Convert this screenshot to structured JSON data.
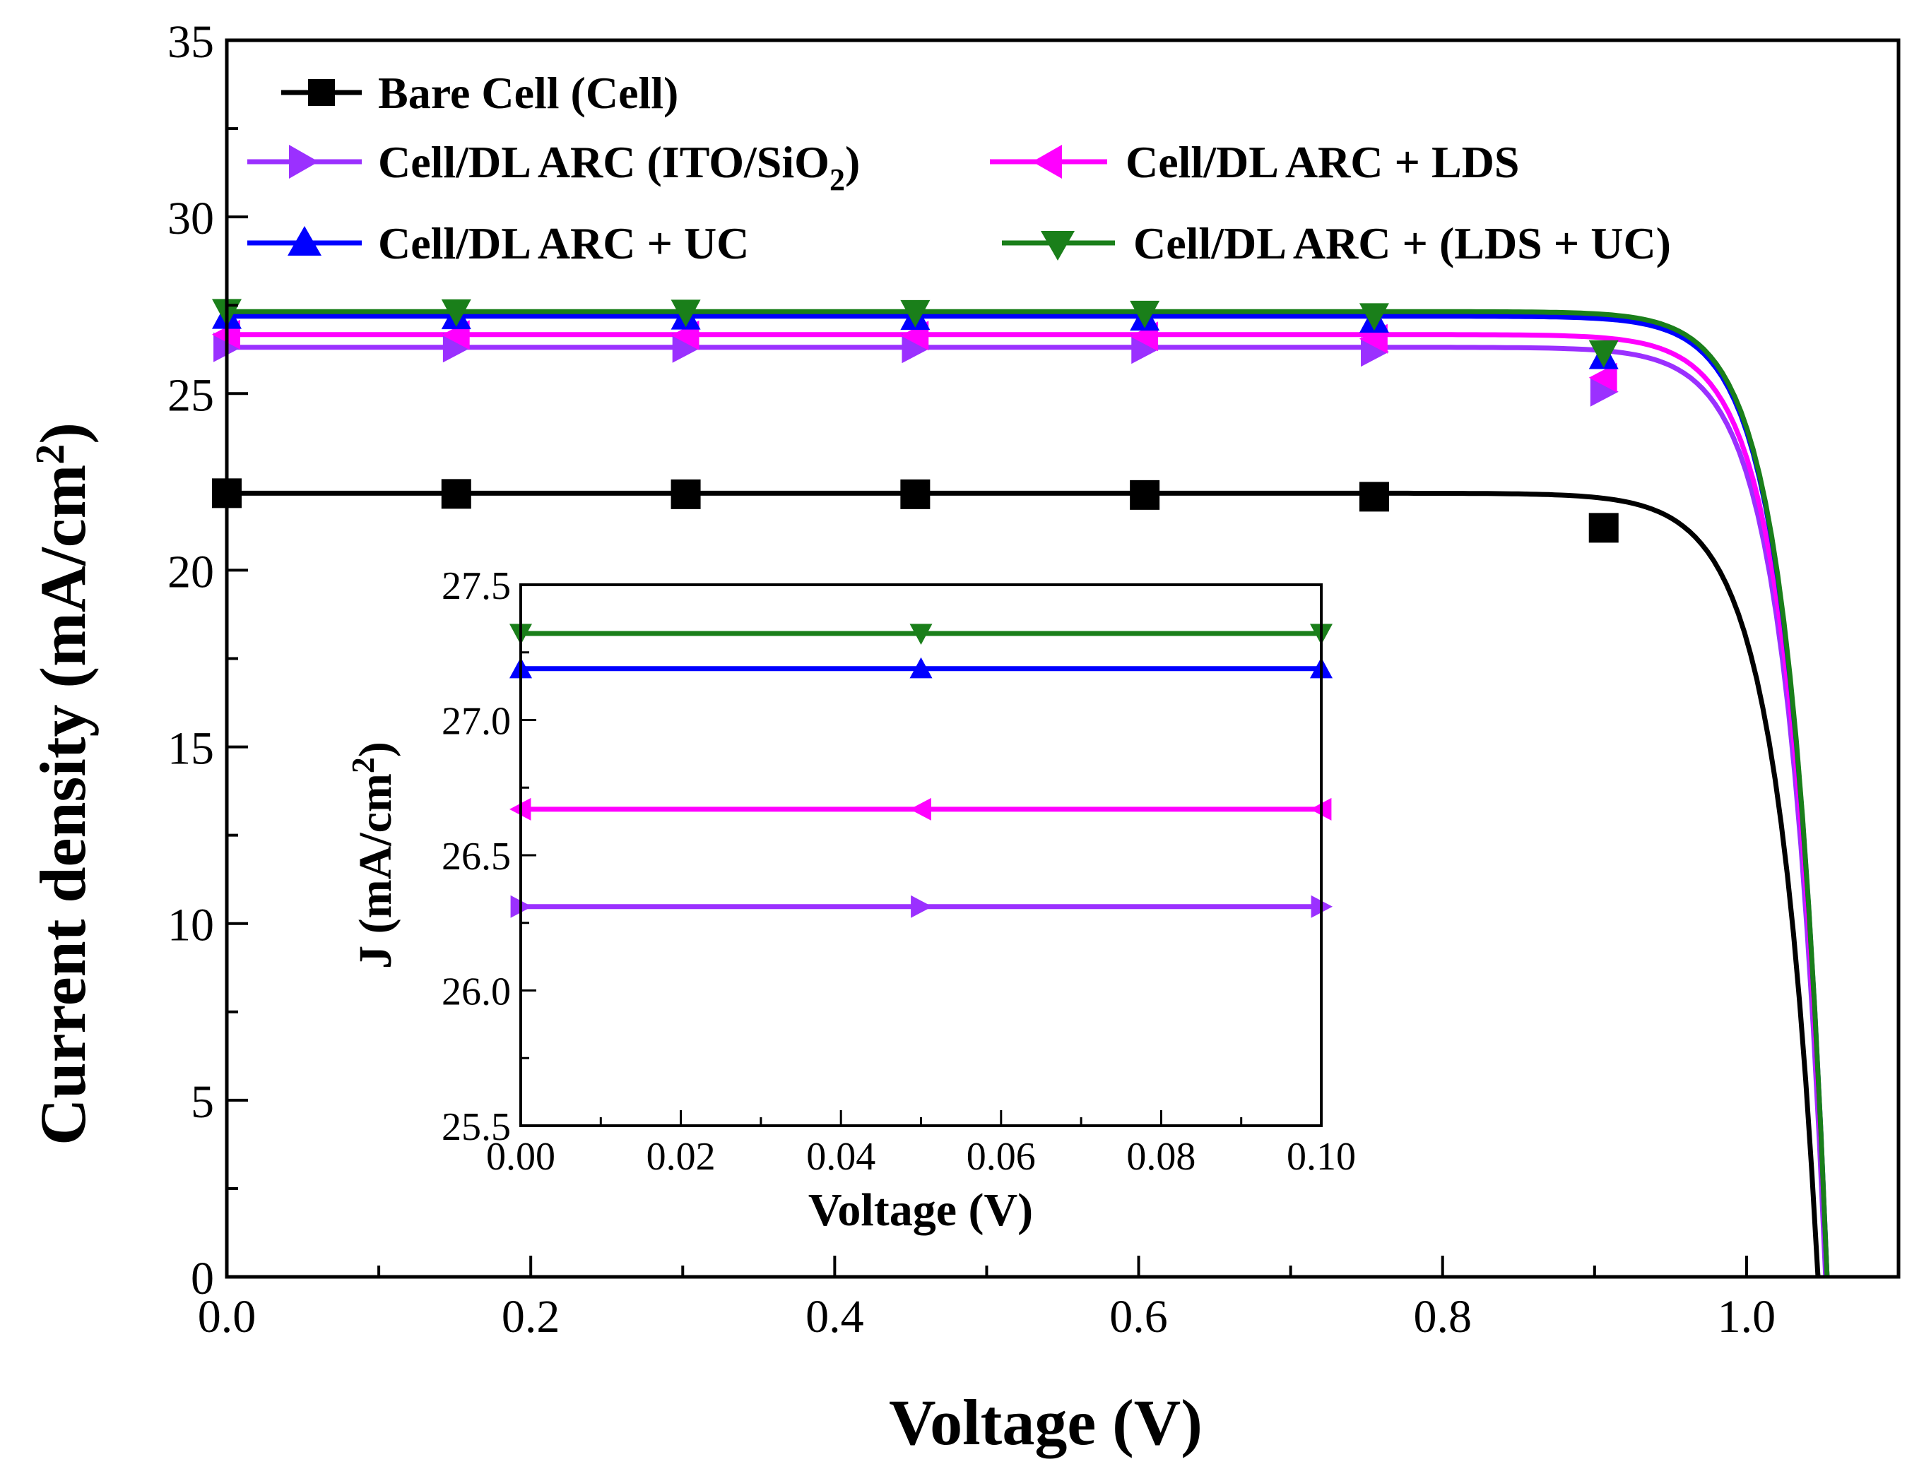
{
  "chart_data": [
    {
      "type": "line",
      "title": "",
      "xlabel": "Voltage (V)",
      "ylabel_main": "Current density (mA/cm",
      "ylabel_sup": "2",
      "ylabel_close": ")",
      "xlim": [
        0.0,
        1.1
      ],
      "ylim": [
        0,
        35
      ],
      "xticks": [
        0.0,
        0.2,
        0.4,
        0.6,
        0.8,
        1.0
      ],
      "xtick_labels": [
        "0.0",
        "0.2",
        "0.4",
        "0.6",
        "0.8",
        "1.0"
      ],
      "yticks": [
        0,
        5,
        10,
        15,
        20,
        25,
        30,
        35
      ],
      "ytick_labels": [
        "0",
        "5",
        "10",
        "15",
        "20",
        "25",
        "30",
        "35"
      ],
      "legend_position": "top-left",
      "marker_x": [
        0.0,
        0.151,
        0.302,
        0.453,
        0.604,
        0.755,
        0.906
      ],
      "series": [
        {
          "id": "bare",
          "name": "Bare Cell (Cell)",
          "color": "#000000",
          "marker": "square",
          "jsc": 22.18,
          "voc": 1.047,
          "knee": 0.028,
          "x": [
            0.0,
            0.151,
            0.302,
            0.453,
            0.604,
            0.755,
            0.906
          ],
          "y": [
            22.18,
            22.16,
            22.15,
            22.15,
            22.13,
            22.08,
            21.2
          ]
        },
        {
          "id": "arc",
          "name": "Cell/DL ARC (ITO/SiO",
          "sub": "2",
          "name_close": ")",
          "color": "#9B30FF",
          "marker": "triangle-right",
          "jsc": 26.31,
          "voc": 1.052,
          "knee": 0.026,
          "x": [
            0.0,
            0.151,
            0.302,
            0.453,
            0.604,
            0.755,
            0.906
          ],
          "y": [
            26.31,
            26.3,
            26.29,
            26.28,
            26.26,
            26.18,
            25.05
          ]
        },
        {
          "id": "lds",
          "name": "Cell/DL ARC + LDS",
          "color": "#FF00FF",
          "marker": "triangle-left",
          "jsc": 26.67,
          "voc": 1.053,
          "knee": 0.026,
          "x": [
            0.0,
            0.151,
            0.302,
            0.453,
            0.604,
            0.755,
            0.906
          ],
          "y": [
            26.67,
            26.66,
            26.65,
            26.64,
            26.62,
            26.55,
            25.45
          ]
        },
        {
          "id": "uc",
          "name": "Cell/DL ARC + UC",
          "color": "#0000FF",
          "marker": "triangle-up",
          "jsc": 27.19,
          "voc": 1.053,
          "knee": 0.025,
          "x": [
            0.0,
            0.151,
            0.302,
            0.453,
            0.604,
            0.755,
            0.906
          ],
          "y": [
            27.19,
            27.18,
            27.17,
            27.16,
            27.14,
            27.08,
            26.05
          ]
        },
        {
          "id": "lduc",
          "name": "Cell/DL ARC + (LDS + UC)",
          "color": "#1A7F1A",
          "marker": "triangle-down",
          "jsc": 27.32,
          "voc": 1.053,
          "knee": 0.025,
          "x": [
            0.0,
            0.151,
            0.302,
            0.453,
            0.604,
            0.755,
            0.906
          ],
          "y": [
            27.32,
            27.31,
            27.3,
            27.29,
            27.27,
            27.2,
            26.15
          ]
        }
      ]
    },
    {
      "type": "line",
      "title": "",
      "xlabel": "Voltage (V)",
      "ylabel_main": "J (mA/cm",
      "ylabel_sup": "2",
      "ylabel_close": ")",
      "xlim": [
        0.0,
        0.1
      ],
      "ylim": [
        25.5,
        27.5
      ],
      "xticks": [
        0.0,
        0.02,
        0.04,
        0.06,
        0.08,
        0.1
      ],
      "xtick_labels": [
        "0.00",
        "0.02",
        "0.04",
        "0.06",
        "0.08",
        "0.10"
      ],
      "yticks": [
        25.5,
        26.0,
        26.5,
        27.0,
        27.5
      ],
      "ytick_labels": [
        "25.5",
        "26.0",
        "26.5",
        "27.0",
        "27.5"
      ],
      "marker_x": [
        0.0,
        0.05,
        0.1
      ],
      "series": [
        {
          "id": "arc",
          "value": 26.31
        },
        {
          "id": "lds",
          "value": 26.67
        },
        {
          "id": "uc",
          "value": 27.19
        },
        {
          "id": "lduc",
          "value": 27.32
        }
      ]
    }
  ]
}
